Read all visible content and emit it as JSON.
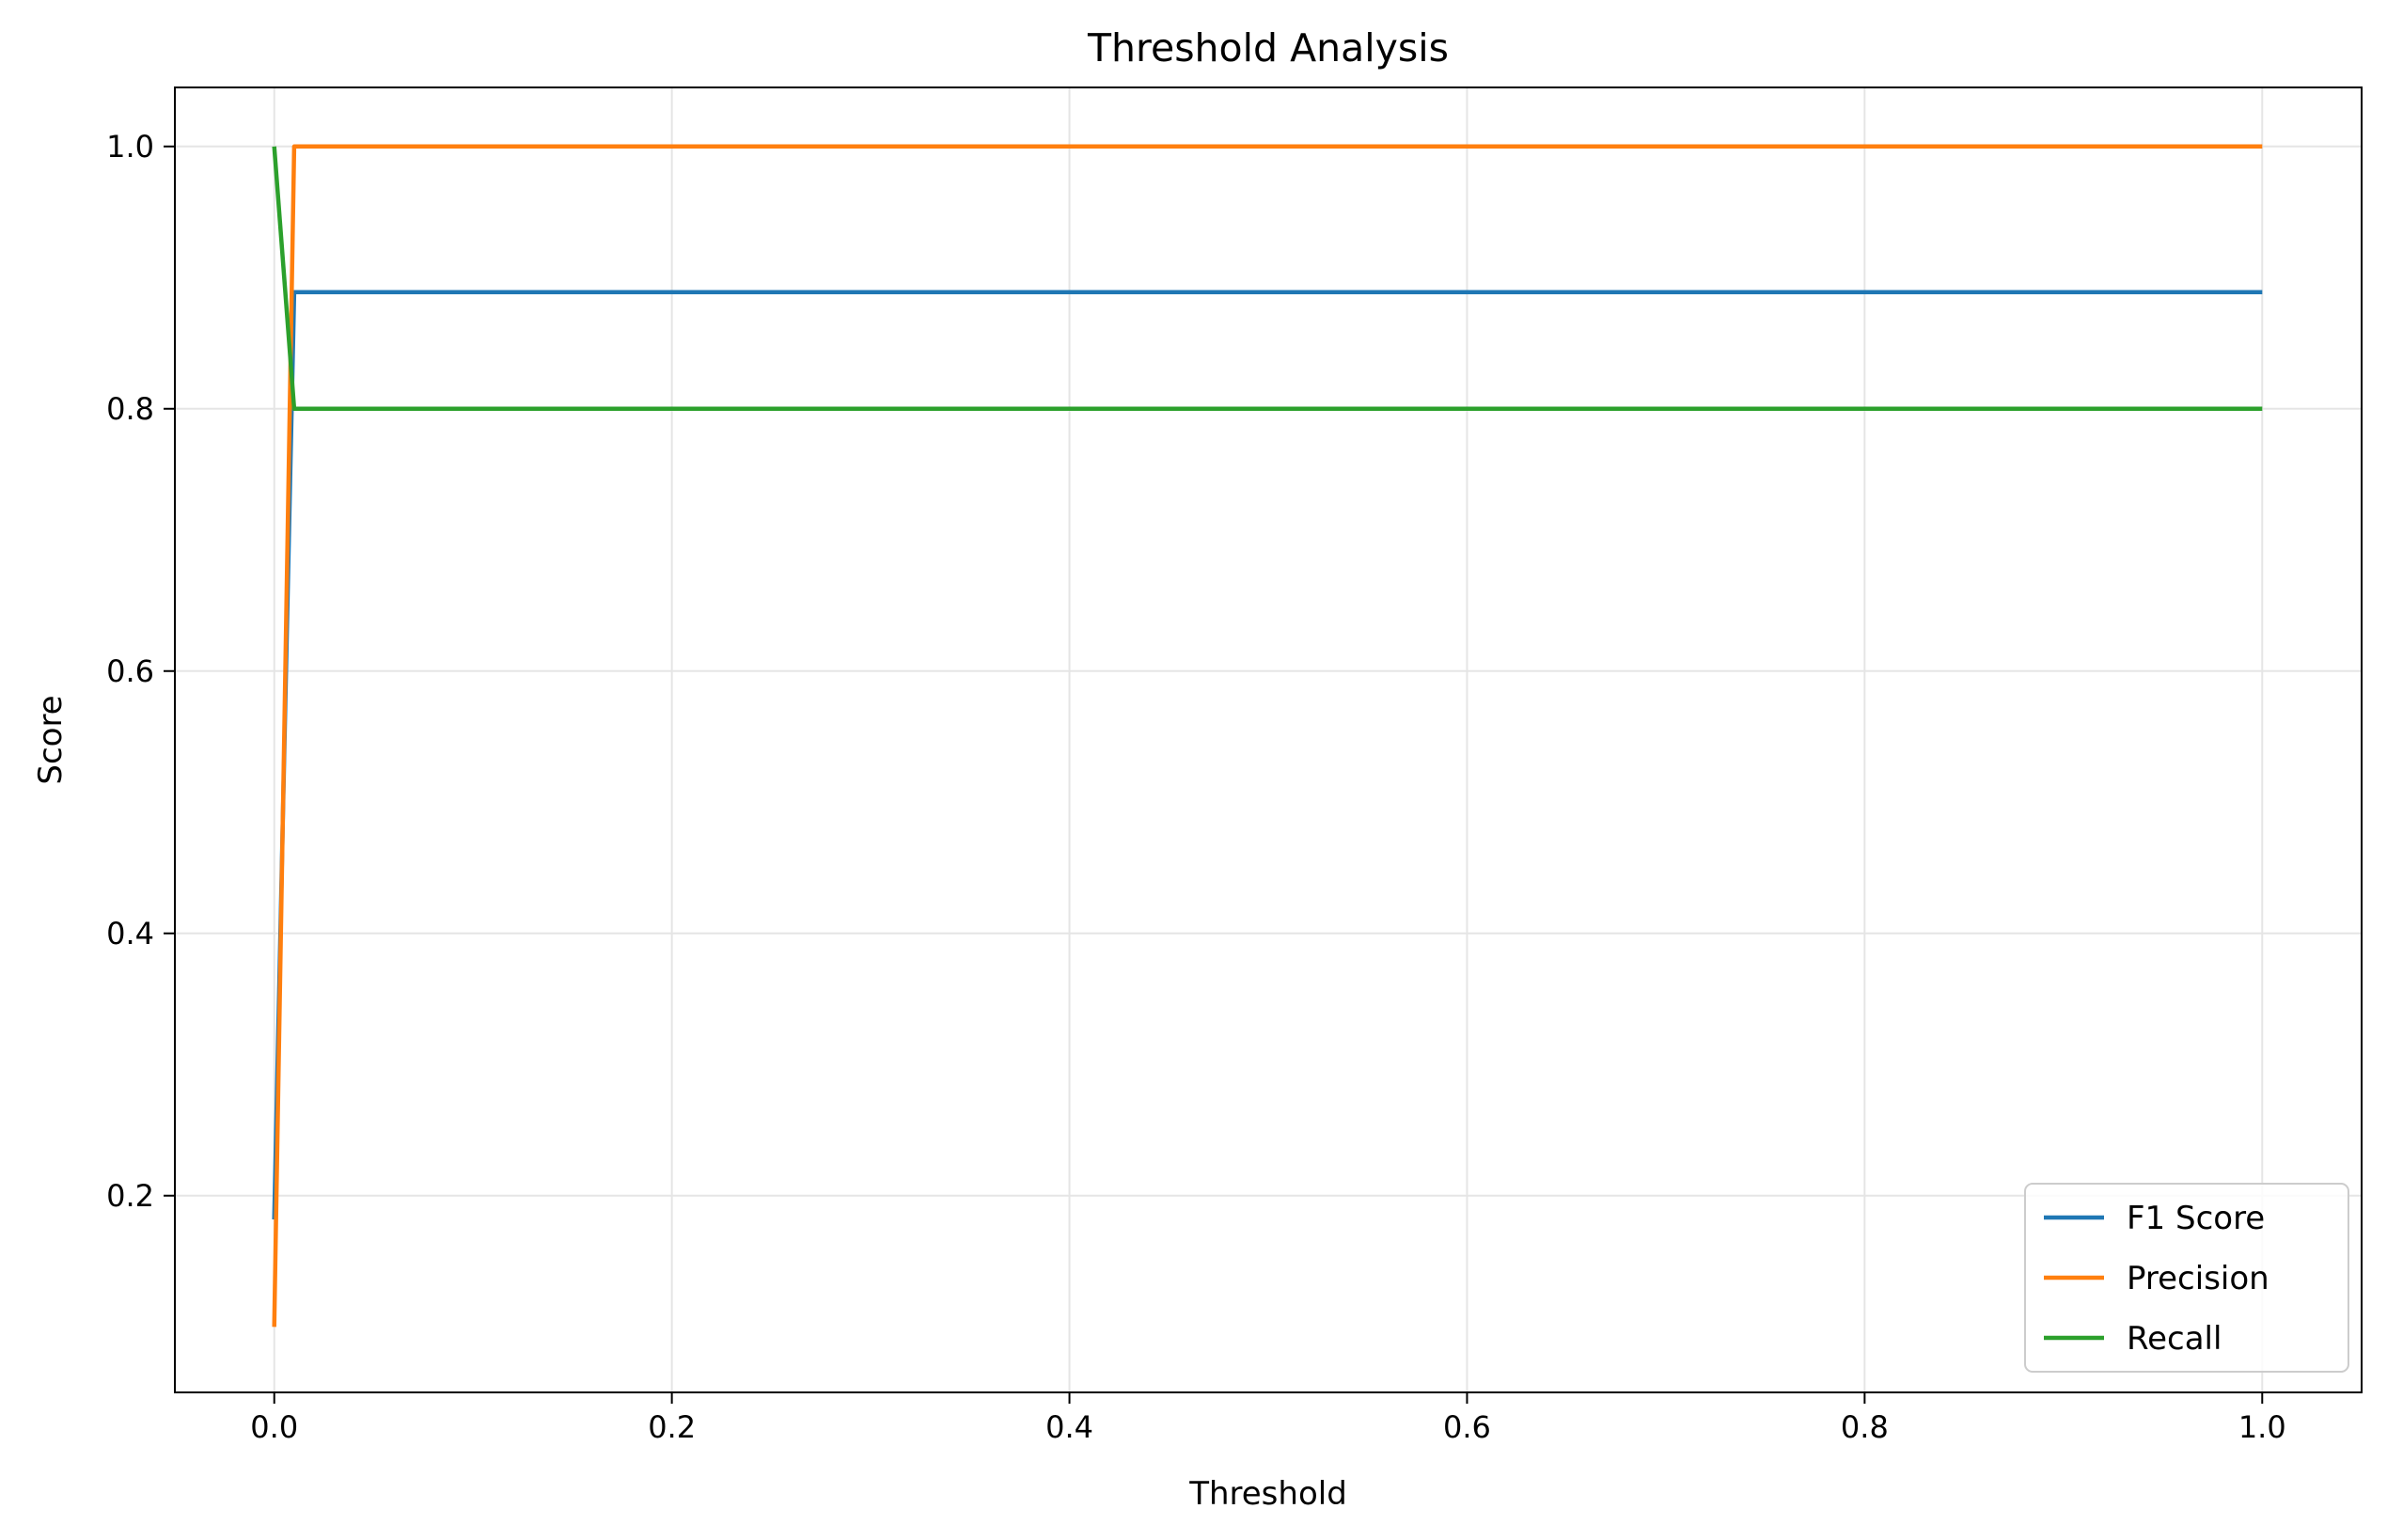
{
  "chart_data": {
    "type": "line",
    "title": "Threshold Analysis",
    "xlabel": "Threshold",
    "ylabel": "Score",
    "xlim": [
      -0.05,
      1.05
    ],
    "ylim": [
      0.05,
      1.045
    ],
    "xticks": [
      0.0,
      0.2,
      0.4,
      0.6,
      0.8,
      1.0
    ],
    "xtick_labels": [
      "0.0",
      "0.2",
      "0.4",
      "0.6",
      "0.8",
      "1.0"
    ],
    "yticks": [
      0.2,
      0.4,
      0.6,
      0.8,
      1.0
    ],
    "ytick_labels": [
      "0.2",
      "0.4",
      "0.6",
      "0.8",
      "1.0"
    ],
    "grid": true,
    "legend_position": "bottom-right",
    "series": [
      {
        "name": "F1 Score",
        "color": "#1f77b4",
        "x": [
          0.0,
          0.01,
          1.0
        ],
        "y": [
          0.1818,
          0.8889,
          0.8889
        ]
      },
      {
        "name": "Precision",
        "color": "#ff7f0e",
        "x": [
          0.0,
          0.01,
          1.0
        ],
        "y": [
          0.1,
          1.0,
          1.0
        ]
      },
      {
        "name": "Recall",
        "color": "#2ca02c",
        "x": [
          0.0,
          0.01,
          1.0
        ],
        "y": [
          1.0,
          0.8,
          0.8
        ]
      }
    ]
  }
}
